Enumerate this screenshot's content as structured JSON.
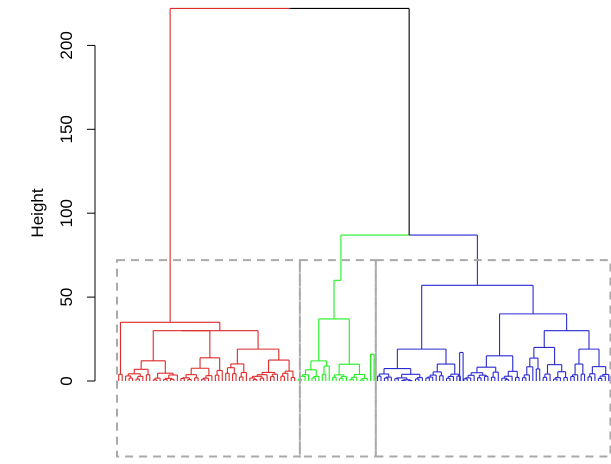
{
  "chart_data": {
    "type": "dendrogram",
    "title": "",
    "xlabel": "",
    "ylabel": "Height",
    "ylim": [
      0,
      220
    ],
    "yticks": [
      0,
      50,
      100,
      150,
      200
    ],
    "grid": false,
    "legend": "none",
    "root_height": 222,
    "clusters": [
      {
        "color": "#dd2a2a",
        "merge_height": 222,
        "leaf_count": 52,
        "subtree_heights": [
          35,
          30,
          19,
          11,
          8
        ],
        "leaf_range_x": [
          0.5,
          52.5
        ],
        "cutoff_box": {
          "x_range": [
            0.5,
            53.5
          ],
          "y_range": [
            -45,
            72
          ]
        }
      },
      {
        "color": "#22ee22",
        "merge_height": 87,
        "leaf_count": 23,
        "subtree_heights": [
          37,
          16,
          12
        ],
        "leaf_range_x": [
          53.5,
          76.5
        ],
        "cutoff_box": {
          "x_range": [
            53.5,
            75.5
          ],
          "y_range": [
            -45,
            72
          ]
        }
      },
      {
        "color": "#2a2ad0",
        "merge_height": 87,
        "leaf_count": 67,
        "subtree_heights": [
          73,
          57,
          40,
          30,
          20,
          19,
          15
        ],
        "leaf_range_x": [
          76.5,
          143.5
        ],
        "cutoff_box": {
          "x_range": [
            75.5,
            143.5
          ],
          "y_range": [
            -45,
            72
          ]
        }
      }
    ],
    "cutoff_boxes": {
      "color": "#aaaaaa",
      "style": "dashed"
    }
  }
}
